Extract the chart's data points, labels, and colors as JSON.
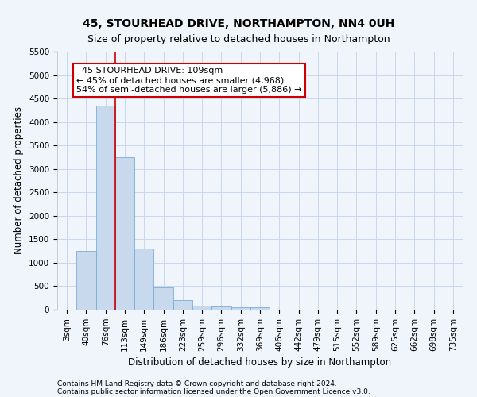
{
  "title": "45, STOURHEAD DRIVE, NORTHAMPTON, NN4 0UH",
  "subtitle": "Size of property relative to detached houses in Northampton",
  "xlabel": "Distribution of detached houses by size in Northampton",
  "ylabel": "Number of detached properties",
  "footer_line1": "Contains HM Land Registry data © Crown copyright and database right 2024.",
  "footer_line2": "Contains public sector information licensed under the Open Government Licence v3.0.",
  "bin_labels": [
    "3sqm",
    "40sqm",
    "76sqm",
    "113sqm",
    "149sqm",
    "186sqm",
    "223sqm",
    "259sqm",
    "296sqm",
    "332sqm",
    "369sqm",
    "406sqm",
    "442sqm",
    "479sqm",
    "515sqm",
    "552sqm",
    "589sqm",
    "625sqm",
    "662sqm",
    "698sqm",
    "735sqm"
  ],
  "bar_values": [
    0,
    1250,
    4350,
    3250,
    1300,
    480,
    200,
    90,
    60,
    50,
    50,
    0,
    0,
    0,
    0,
    0,
    0,
    0,
    0,
    0,
    0
  ],
  "bar_color": "#c8d9ee",
  "bar_edge_color": "#7aadd4",
  "ylim": [
    0,
    5500
  ],
  "yticks": [
    0,
    500,
    1000,
    1500,
    2000,
    2500,
    3000,
    3500,
    4000,
    4500,
    5000,
    5500
  ],
  "vline_color": "#cc0000",
  "annotation_text_line1": "  45 STOURHEAD DRIVE: 109sqm",
  "annotation_text_line2": "← 45% of detached houses are smaller (4,968)",
  "annotation_text_line3": "54% of semi-detached houses are larger (5,886) →",
  "bg_color": "#f0f4fb",
  "grid_color": "#c8d8ec",
  "title_fontsize": 10,
  "subtitle_fontsize": 9,
  "axis_label_fontsize": 8.5,
  "tick_fontsize": 7.5,
  "annotation_fontsize": 8,
  "footer_fontsize": 6.5
}
